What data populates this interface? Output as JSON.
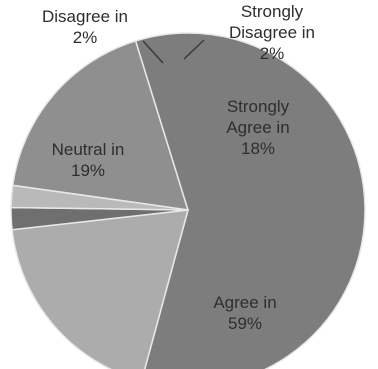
{
  "chart_data": {
    "type": "pie",
    "title": "",
    "slices": [
      {
        "category": "Strongly Agree",
        "value": 18,
        "line1": "Strongly",
        "line2": "Agree in",
        "line3": "18%",
        "color": "#8f8f8f",
        "label_color": "#2e2e2e"
      },
      {
        "category": "Agree",
        "value": 59,
        "line1": "Agree in",
        "line2": "59%",
        "line3": "",
        "color": "#7d7d7d",
        "label_color": "#2e2e2e"
      },
      {
        "category": "Neutral",
        "value": 19,
        "line1": "Neutral in",
        "line2": "19%",
        "line3": "",
        "color": "#acacac",
        "label_color": "#2e2e2e"
      },
      {
        "category": "Disagree",
        "value": 2,
        "line1": "Disagree in",
        "line2": "2%",
        "line3": "",
        "color": "#6f6f6f",
        "label_color": "#2e2e2e"
      },
      {
        "category": "Strongly Disagree",
        "value": 2,
        "line1": "Strongly",
        "line2": "Disagree in",
        "line3": "2%",
        "color": "#b9b9b9",
        "label_color": "#2e2e2e"
      }
    ],
    "background": "#ffffff"
  }
}
